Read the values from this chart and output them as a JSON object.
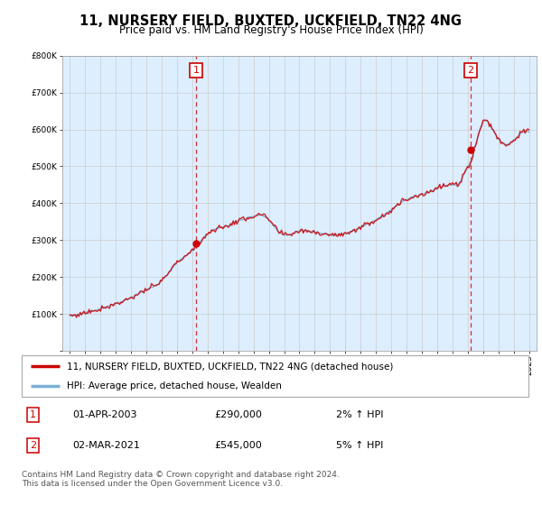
{
  "title": "11, NURSERY FIELD, BUXTED, UCKFIELD, TN22 4NG",
  "subtitle": "Price paid vs. HM Land Registry's House Price Index (HPI)",
  "legend_line1": "11, NURSERY FIELD, BUXTED, UCKFIELD, TN22 4NG (detached house)",
  "legend_line2": "HPI: Average price, detached house, Wealden",
  "sale1_label": "1",
  "sale1_date": "01-APR-2003",
  "sale1_price": "£290,000",
  "sale1_hpi": "2% ↑ HPI",
  "sale1_year": 2003.25,
  "sale1_value": 290000,
  "sale2_label": "2",
  "sale2_date": "02-MAR-2021",
  "sale2_price": "£545,000",
  "sale2_hpi": "5% ↑ HPI",
  "sale2_year": 2021.17,
  "sale2_value": 545000,
  "ylim": [
    0,
    800000
  ],
  "xlim_start": 1994.5,
  "xlim_end": 2025.5,
  "line_color_red": "#cc0000",
  "line_color_blue": "#7bafd4",
  "vline_color": "#cc0000",
  "grid_color": "#cccccc",
  "plot_bg_color": "#ddeeff",
  "background_color": "#ffffff",
  "footer_text": "Contains HM Land Registry data © Crown copyright and database right 2024.\nThis data is licensed under the Open Government Licence v3.0."
}
